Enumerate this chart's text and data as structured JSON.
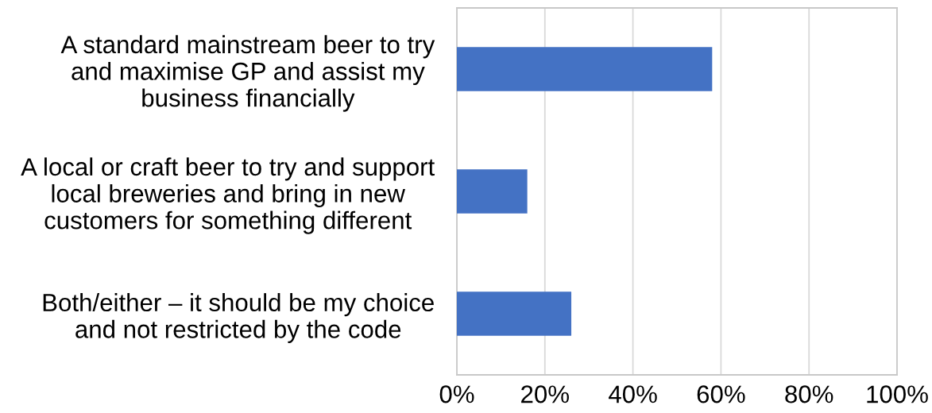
{
  "chart_data": {
    "type": "bar",
    "orientation": "horizontal",
    "categories": [
      "A standard mainstream beer to try\nand maximise GP and assist my\nbusiness financially",
      "A local or craft beer to try and support\nlocal breweries and bring in new\ncustomers for something different",
      "Both/either – it should be my choice\nand not restricted by the code"
    ],
    "values": [
      58,
      16,
      26
    ],
    "color": "#4472c4",
    "xlim": [
      0,
      100
    ],
    "xticks": [
      {
        "value": 0,
        "label": "0%"
      },
      {
        "value": 20,
        "label": "20%"
      },
      {
        "value": 40,
        "label": "40%"
      },
      {
        "value": 60,
        "label": "60%"
      },
      {
        "value": 80,
        "label": "80%"
      },
      {
        "value": 100,
        "label": "100%"
      }
    ],
    "grid": "x",
    "legend": false
  }
}
